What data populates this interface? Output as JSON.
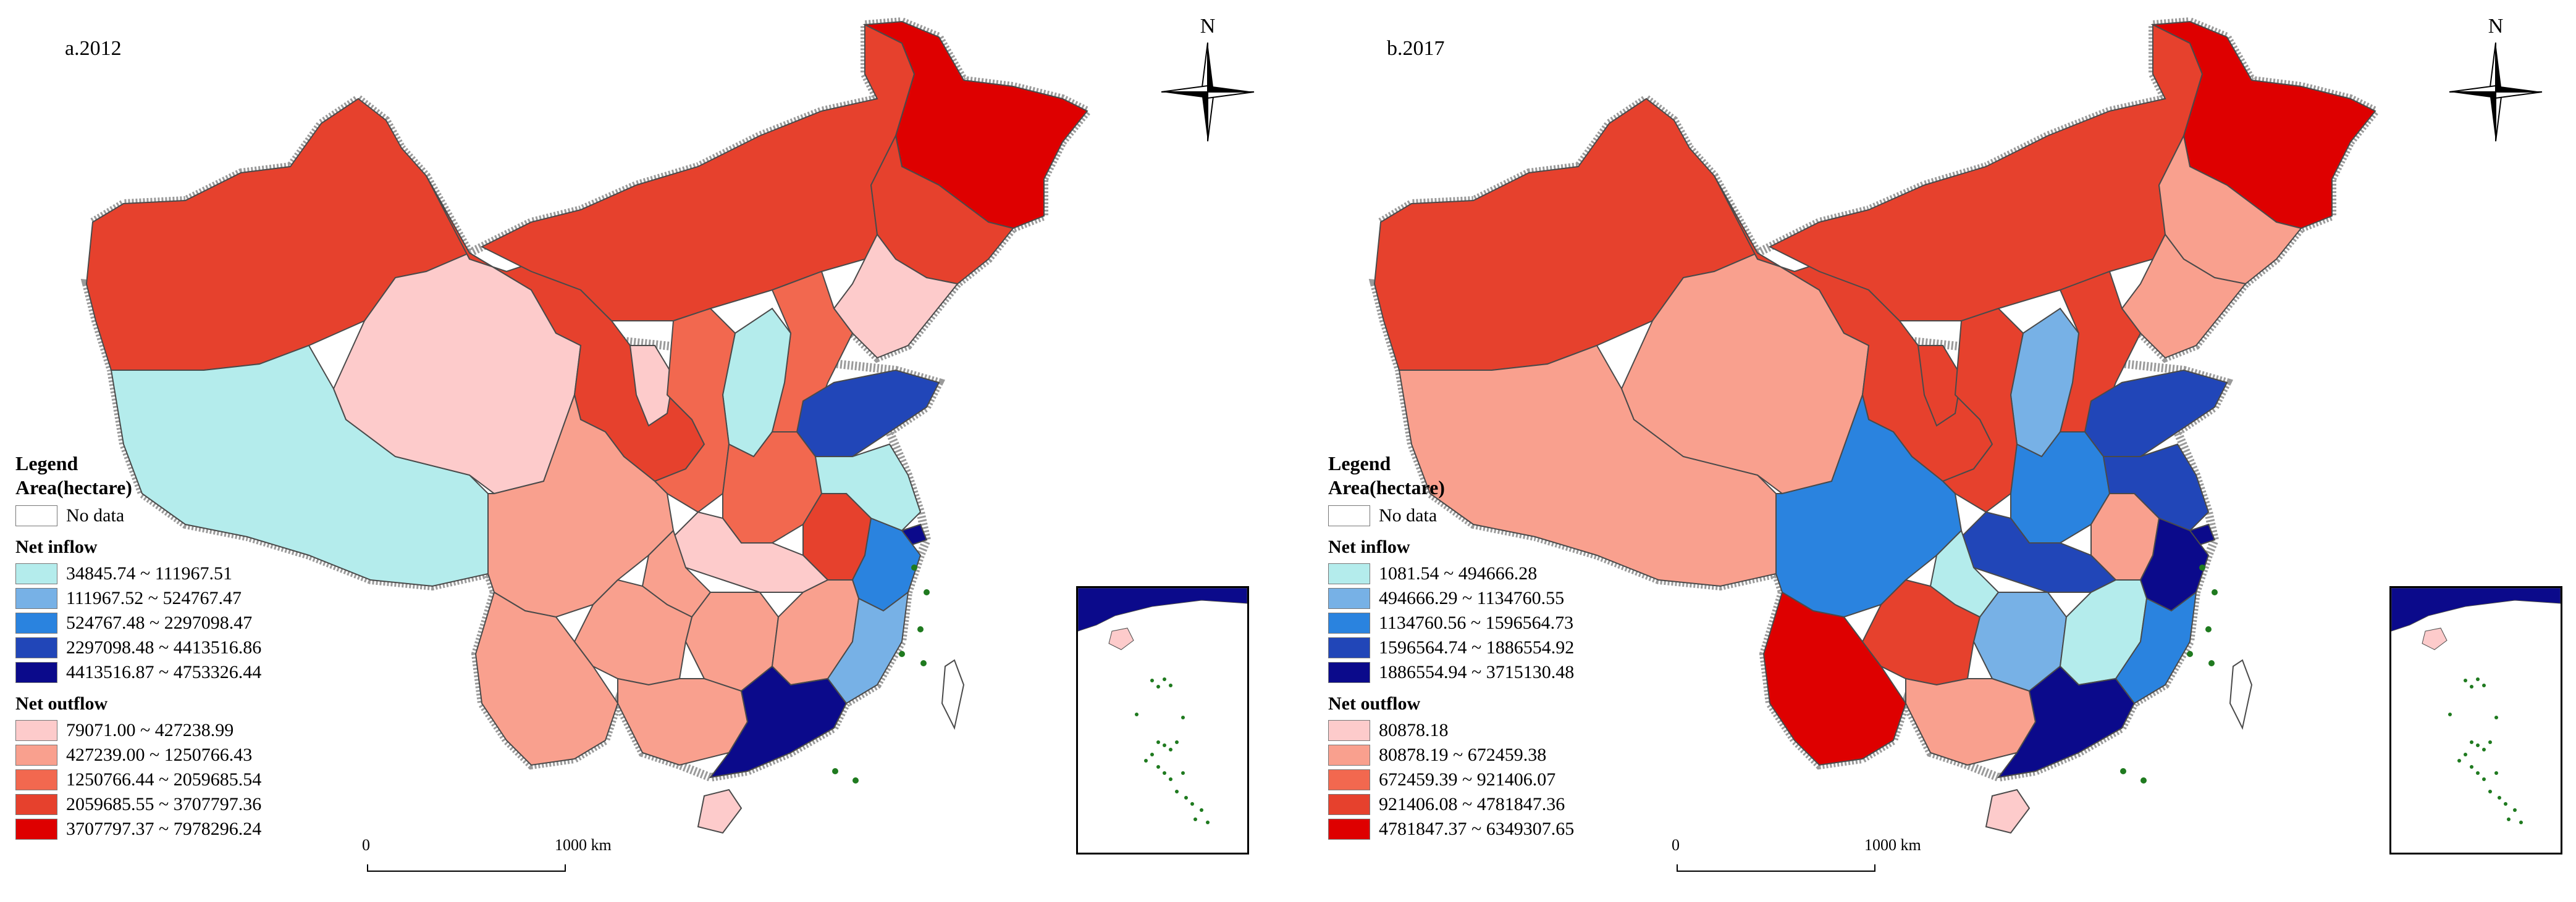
{
  "panels": [
    {
      "title": "a.2012",
      "legend": {
        "heading": "Legend",
        "subheading": "Area(hectare)",
        "no_data": "No data",
        "inflow_label": "Net inflow",
        "outflow_label": "Net outflow",
        "inflow_classes": [
          "34845.74 ~ 111967.51",
          "111967.52 ~ 524767.47",
          "524767.48 ~ 2297098.47",
          "2297098.48 ~ 4413516.86",
          "4413516.87 ~ 4753326.44"
        ],
        "outflow_classes": [
          "79071.00 ~ 427238.99",
          "427239.00 ~ 1250766.43",
          "1250766.44 ~ 2059685.54",
          "2059685.55 ~ 3707797.36",
          "3707797.37 ~ 7978296.24"
        ]
      },
      "regions": [
        {
          "name": "Xinjiang",
          "cls": "out4"
        },
        {
          "name": "Tibet",
          "cls": "in1"
        },
        {
          "name": "Qinghai",
          "cls": "out1"
        },
        {
          "name": "Gansu",
          "cls": "out4"
        },
        {
          "name": "Inner Mongolia",
          "cls": "out4"
        },
        {
          "name": "Heilongjiang",
          "cls": "out5"
        },
        {
          "name": "Jilin",
          "cls": "out4"
        },
        {
          "name": "Liaoning",
          "cls": "out1"
        },
        {
          "name": "Beijing",
          "cls": "in3"
        },
        {
          "name": "Tianjin",
          "cls": "in2"
        },
        {
          "name": "Hebei",
          "cls": "out3"
        },
        {
          "name": "Shanxi",
          "cls": "in1"
        },
        {
          "name": "Shandong",
          "cls": "in4"
        },
        {
          "name": "Ningxia",
          "cls": "out1"
        },
        {
          "name": "Shaanxi",
          "cls": "out3"
        },
        {
          "name": "Henan",
          "cls": "out3"
        },
        {
          "name": "Jiangsu",
          "cls": "in1"
        },
        {
          "name": "Anhui",
          "cls": "out4"
        },
        {
          "name": "Shanghai",
          "cls": "in5"
        },
        {
          "name": "Sichuan",
          "cls": "out2"
        },
        {
          "name": "Hubei",
          "cls": "out1"
        },
        {
          "name": "Chongqing",
          "cls": "out2"
        },
        {
          "name": "Zhejiang",
          "cls": "in3"
        },
        {
          "name": "Hunan",
          "cls": "out2"
        },
        {
          "name": "Jiangxi",
          "cls": "out2"
        },
        {
          "name": "Fujian",
          "cls": "in2"
        },
        {
          "name": "Yunnan",
          "cls": "out2"
        },
        {
          "name": "Guizhou",
          "cls": "out2"
        },
        {
          "name": "Guangxi",
          "cls": "out2"
        },
        {
          "name": "Guangdong",
          "cls": "in5"
        },
        {
          "name": "Hainan",
          "cls": "out1"
        },
        {
          "name": "Taiwan",
          "cls": "nodata"
        }
      ]
    },
    {
      "title": "b.2017",
      "legend": {
        "heading": "Legend",
        "subheading": "Area(hectare)",
        "no_data": "No data",
        "inflow_label": "Net inflow",
        "outflow_label": "Net outflow",
        "inflow_classes": [
          "1081.54 ~ 494666.28",
          "494666.29 ~ 1134760.55",
          "1134760.56 ~ 1596564.73",
          "1596564.74 ~ 1886554.92",
          "1886554.94 ~ 3715130.48"
        ],
        "outflow_classes": [
          "80878.18",
          "80878.19 ~ 672459.38",
          "672459.39 ~ 921406.07",
          "921406.08 ~ 4781847.36",
          "4781847.37 ~ 6349307.65"
        ]
      },
      "regions": [
        {
          "name": "Xinjiang",
          "cls": "out4"
        },
        {
          "name": "Tibet",
          "cls": "out2"
        },
        {
          "name": "Qinghai",
          "cls": "out2"
        },
        {
          "name": "Gansu",
          "cls": "out4"
        },
        {
          "name": "Inner Mongolia",
          "cls": "out4"
        },
        {
          "name": "Heilongjiang",
          "cls": "out5"
        },
        {
          "name": "Jilin",
          "cls": "out2"
        },
        {
          "name": "Liaoning",
          "cls": "out2"
        },
        {
          "name": "Beijing",
          "cls": "in5"
        },
        {
          "name": "Tianjin",
          "cls": "in2"
        },
        {
          "name": "Hebei",
          "cls": "out4"
        },
        {
          "name": "Shanxi",
          "cls": "in2"
        },
        {
          "name": "Shandong",
          "cls": "in4"
        },
        {
          "name": "Ningxia",
          "cls": "out4"
        },
        {
          "name": "Shaanxi",
          "cls": "out4"
        },
        {
          "name": "Henan",
          "cls": "in3"
        },
        {
          "name": "Jiangsu",
          "cls": "in4"
        },
        {
          "name": "Anhui",
          "cls": "out2"
        },
        {
          "name": "Shanghai",
          "cls": "in5"
        },
        {
          "name": "Sichuan",
          "cls": "in3"
        },
        {
          "name": "Hubei",
          "cls": "in4"
        },
        {
          "name": "Chongqing",
          "cls": "in1"
        },
        {
          "name": "Zhejiang",
          "cls": "in5"
        },
        {
          "name": "Hunan",
          "cls": "in2"
        },
        {
          "name": "Jiangxi",
          "cls": "in1"
        },
        {
          "name": "Fujian",
          "cls": "in3"
        },
        {
          "name": "Yunnan",
          "cls": "out5"
        },
        {
          "name": "Guizhou",
          "cls": "out4"
        },
        {
          "name": "Guangxi",
          "cls": "out2"
        },
        {
          "name": "Guangdong",
          "cls": "in5"
        },
        {
          "name": "Hainan",
          "cls": "out1"
        },
        {
          "name": "Taiwan",
          "cls": "nodata"
        }
      ]
    }
  ],
  "compass_label": "N",
  "scale": {
    "start": "0",
    "end": "1000 km"
  },
  "colors": {
    "nodata": "#ffffff",
    "in1": "#b4ecec",
    "in2": "#77b1e6",
    "in3": "#2a83df",
    "in4": "#2146b8",
    "in5": "#0b0a8b",
    "out1": "#fdcbcb",
    "out2": "#f9a08e",
    "out3": "#f2684f",
    "out4": "#e6412d",
    "out5": "#de0000",
    "border": "#4a4a4a",
    "frontier": "#9a9a9a",
    "island": "#1f7a1f"
  }
}
